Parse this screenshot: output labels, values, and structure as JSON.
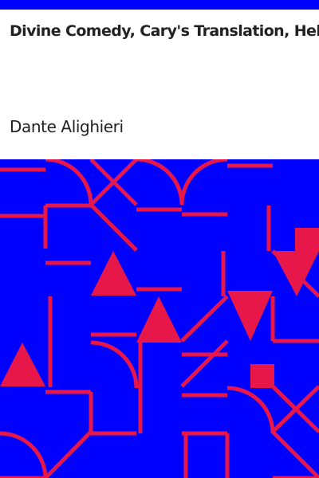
{
  "cover": {
    "title": "Divine Comedy, Cary's Translation, Hell",
    "author": "Dante Alighieri"
  },
  "colors": {
    "background": "#ffffff",
    "pattern_background": "#0000ff",
    "pattern_shape": "#e8174a",
    "text": "#222222"
  }
}
